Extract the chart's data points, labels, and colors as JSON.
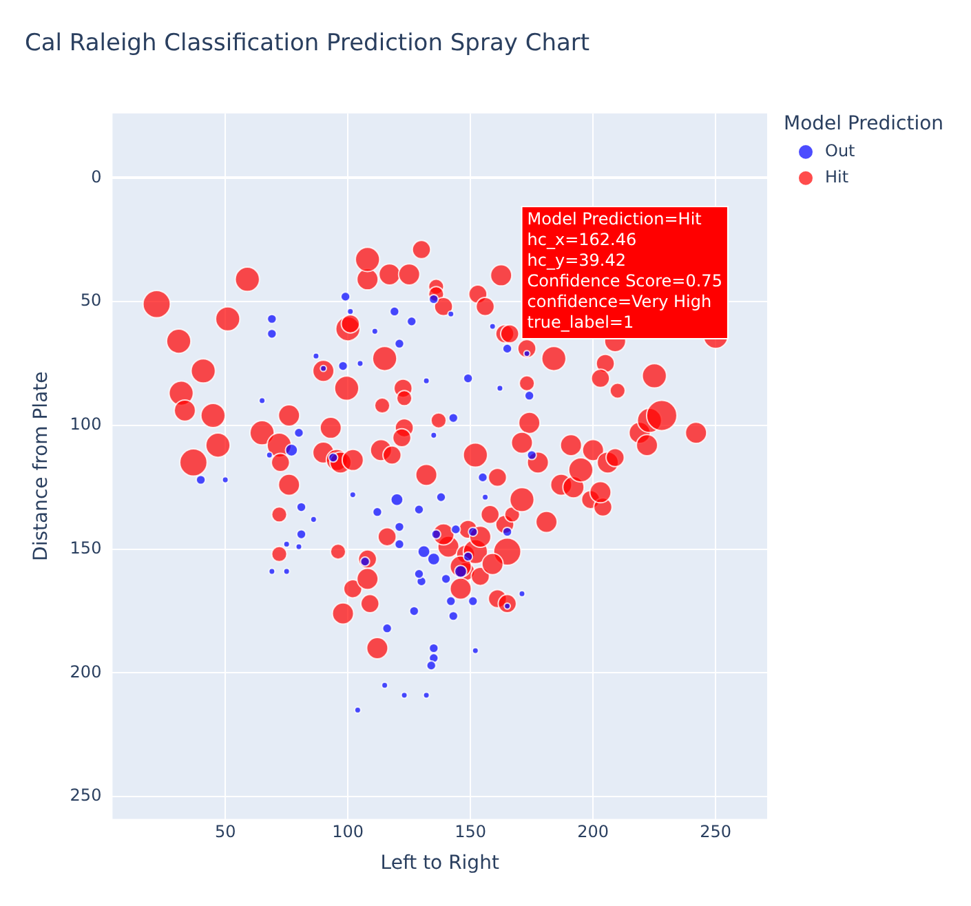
{
  "chart_data": {
    "type": "bubble",
    "title": "Cal Raleigh Classification Prediction Spray Chart",
    "xlabel": "Left to Right",
    "ylabel": "Distance from Plate",
    "legend_title": "Model Prediction",
    "legend": "top right",
    "grid": true,
    "xlim": [
      4,
      271
    ],
    "ylim": [
      259,
      -26
    ],
    "xticks": [
      50,
      100,
      150,
      200,
      250
    ],
    "yticks": [
      0,
      50,
      100,
      150,
      200,
      250
    ],
    "annotations": [
      {
        "text": "Model Prediction=Hit\nhc_x=162.46\nhc_y=39.42\nConfidence Score=0.75\nconfidence=Very High\ntrue_label=1",
        "x": 162.46,
        "y": 39.42
      }
    ],
    "series": [
      {
        "name": "Out",
        "color": "#0000ff",
        "x": [
          99,
          101,
          69,
          69,
          87,
          90,
          98,
          105,
          65,
          119,
          111,
          121,
          126,
          135,
          142,
          159,
          173,
          165,
          149,
          162,
          132,
          135,
          143,
          174,
          68,
          50,
          40,
          77,
          80,
          94,
          86,
          81,
          75,
          75,
          80,
          81,
          102,
          107,
          112,
          120,
          129,
          131,
          135,
          136,
          140,
          142,
          143,
          130,
          121,
          121,
          127,
          116,
          135,
          135,
          134,
          144,
          146,
          149,
          151,
          151,
          155,
          156,
          171,
          165,
          152,
          132,
          123,
          115,
          104,
          69,
          165,
          175,
          138,
          129
        ],
        "values": [
          48,
          54,
          57,
          63,
          72,
          77,
          76,
          75,
          90,
          54,
          62,
          67,
          58,
          49,
          55,
          60,
          71,
          69,
          81,
          85,
          82,
          104,
          97,
          88,
          112,
          122,
          122,
          110,
          103,
          113,
          138,
          144,
          148,
          159,
          149,
          133,
          128,
          155,
          135,
          130,
          134,
          151,
          154,
          144,
          162,
          171,
          177,
          163,
          148,
          141,
          175,
          182,
          190,
          194,
          197,
          142,
          159,
          153,
          171,
          143,
          121,
          129,
          168,
          173,
          191,
          209,
          209,
          205,
          215,
          159,
          143,
          112,
          129,
          160
        ],
        "sizes": [
          0.09,
          0.04,
          0.09,
          0.09,
          0.04,
          0.04,
          0.09,
          0.04,
          0.04,
          0.09,
          0.04,
          0.09,
          0.09,
          0.09,
          0.04,
          0.04,
          0.04,
          0.09,
          0.09,
          0.04,
          0.04,
          0.04,
          0.09,
          0.09,
          0.04,
          0.04,
          0.09,
          0.16,
          0.09,
          0.09,
          0.04,
          0.09,
          0.04,
          0.04,
          0.04,
          0.09,
          0.04,
          0.09,
          0.09,
          0.16,
          0.09,
          0.16,
          0.16,
          0.09,
          0.09,
          0.09,
          0.09,
          0.09,
          0.09,
          0.09,
          0.09,
          0.09,
          0.09,
          0.09,
          0.09,
          0.09,
          0.16,
          0.09,
          0.09,
          0.09,
          0.09,
          0.04,
          0.04,
          0.04,
          0.04,
          0.04,
          0.04,
          0.04,
          0.04,
          0.04,
          0.09,
          0.09,
          0.09,
          0.09
        ]
      },
      {
        "name": "Hit",
        "color": "#ff0000",
        "x": [
          22,
          31,
          32,
          33.5,
          41,
          45,
          47,
          37,
          51,
          59,
          65,
          72,
          76,
          72.5,
          76,
          72,
          72,
          90,
          93,
          90,
          95.5,
          97,
          102,
          99.5,
          100,
          101,
          108,
          108,
          117,
          125,
          130,
          115,
          122.5,
          114,
          123,
          123,
          122,
          113.5,
          118,
          132,
          96,
          98,
          102,
          108,
          108,
          109,
          116,
          112,
          136,
          136,
          139,
          137,
          141,
          148,
          148,
          152,
          153,
          156,
          162.5,
          164,
          166,
          173,
          184,
          209,
          225,
          205,
          203,
          210,
          173,
          177.5,
          174,
          171,
          191,
          187,
          192,
          195,
          199,
          204,
          203,
          200,
          206,
          209,
          219,
          222,
          223,
          228,
          242,
          250,
          164,
          167,
          181,
          171,
          161,
          139,
          149,
          152,
          158,
          165,
          154,
          146,
          154,
          159,
          161,
          165,
          146
        ],
        "values": [
          51,
          66,
          87,
          94,
          78,
          96,
          108,
          115,
          57,
          41,
          103,
          108,
          124,
          115,
          96,
          136,
          152,
          78,
          101,
          111,
          114,
          115,
          114,
          85,
          61,
          59,
          41,
          33,
          39,
          39,
          29,
          73,
          85,
          92,
          89,
          101,
          105,
          110,
          112,
          120,
          151,
          176,
          166,
          154,
          162,
          172,
          145,
          190,
          44,
          47,
          52,
          98,
          149,
          152,
          159,
          112,
          47,
          52,
          39.4,
          63,
          63,
          69,
          73,
          66,
          80,
          75,
          81,
          86,
          83,
          115,
          99,
          107,
          108,
          124,
          125,
          118,
          130,
          133,
          127,
          110,
          115,
          113,
          103,
          108,
          98,
          96,
          103,
          64,
          140,
          136,
          139,
          130,
          121,
          144,
          142,
          151,
          136,
          151,
          145,
          157,
          161,
          156,
          170,
          172,
          166
        ],
        "sizes": [
          0.81,
          0.64,
          0.64,
          0.49,
          0.64,
          0.64,
          0.64,
          0.81,
          0.64,
          0.64,
          0.64,
          0.64,
          0.49,
          0.36,
          0.49,
          0.25,
          0.25,
          0.49,
          0.49,
          0.49,
          0.49,
          0.49,
          0.49,
          0.64,
          0.64,
          0.36,
          0.49,
          0.64,
          0.49,
          0.49,
          0.36,
          0.64,
          0.36,
          0.25,
          0.25,
          0.36,
          0.36,
          0.49,
          0.36,
          0.49,
          0.25,
          0.49,
          0.36,
          0.36,
          0.49,
          0.36,
          0.36,
          0.49,
          0.25,
          0.25,
          0.36,
          0.25,
          0.49,
          0.36,
          0.36,
          0.64,
          0.36,
          0.36,
          0.49,
          0.36,
          0.36,
          0.36,
          0.64,
          0.49,
          0.64,
          0.36,
          0.36,
          0.25,
          0.25,
          0.49,
          0.49,
          0.49,
          0.49,
          0.49,
          0.49,
          0.64,
          0.36,
          0.36,
          0.49,
          0.49,
          0.49,
          0.36,
          0.49,
          0.49,
          0.64,
          1,
          0.49,
          0.64,
          0.36,
          0.25,
          0.49,
          0.64,
          0.36,
          0.49,
          0.36,
          0.64,
          0.36,
          0.81,
          0.49,
          0.49,
          0.36,
          0.49,
          0.36,
          0.36,
          0.49
        ]
      }
    ]
  }
}
